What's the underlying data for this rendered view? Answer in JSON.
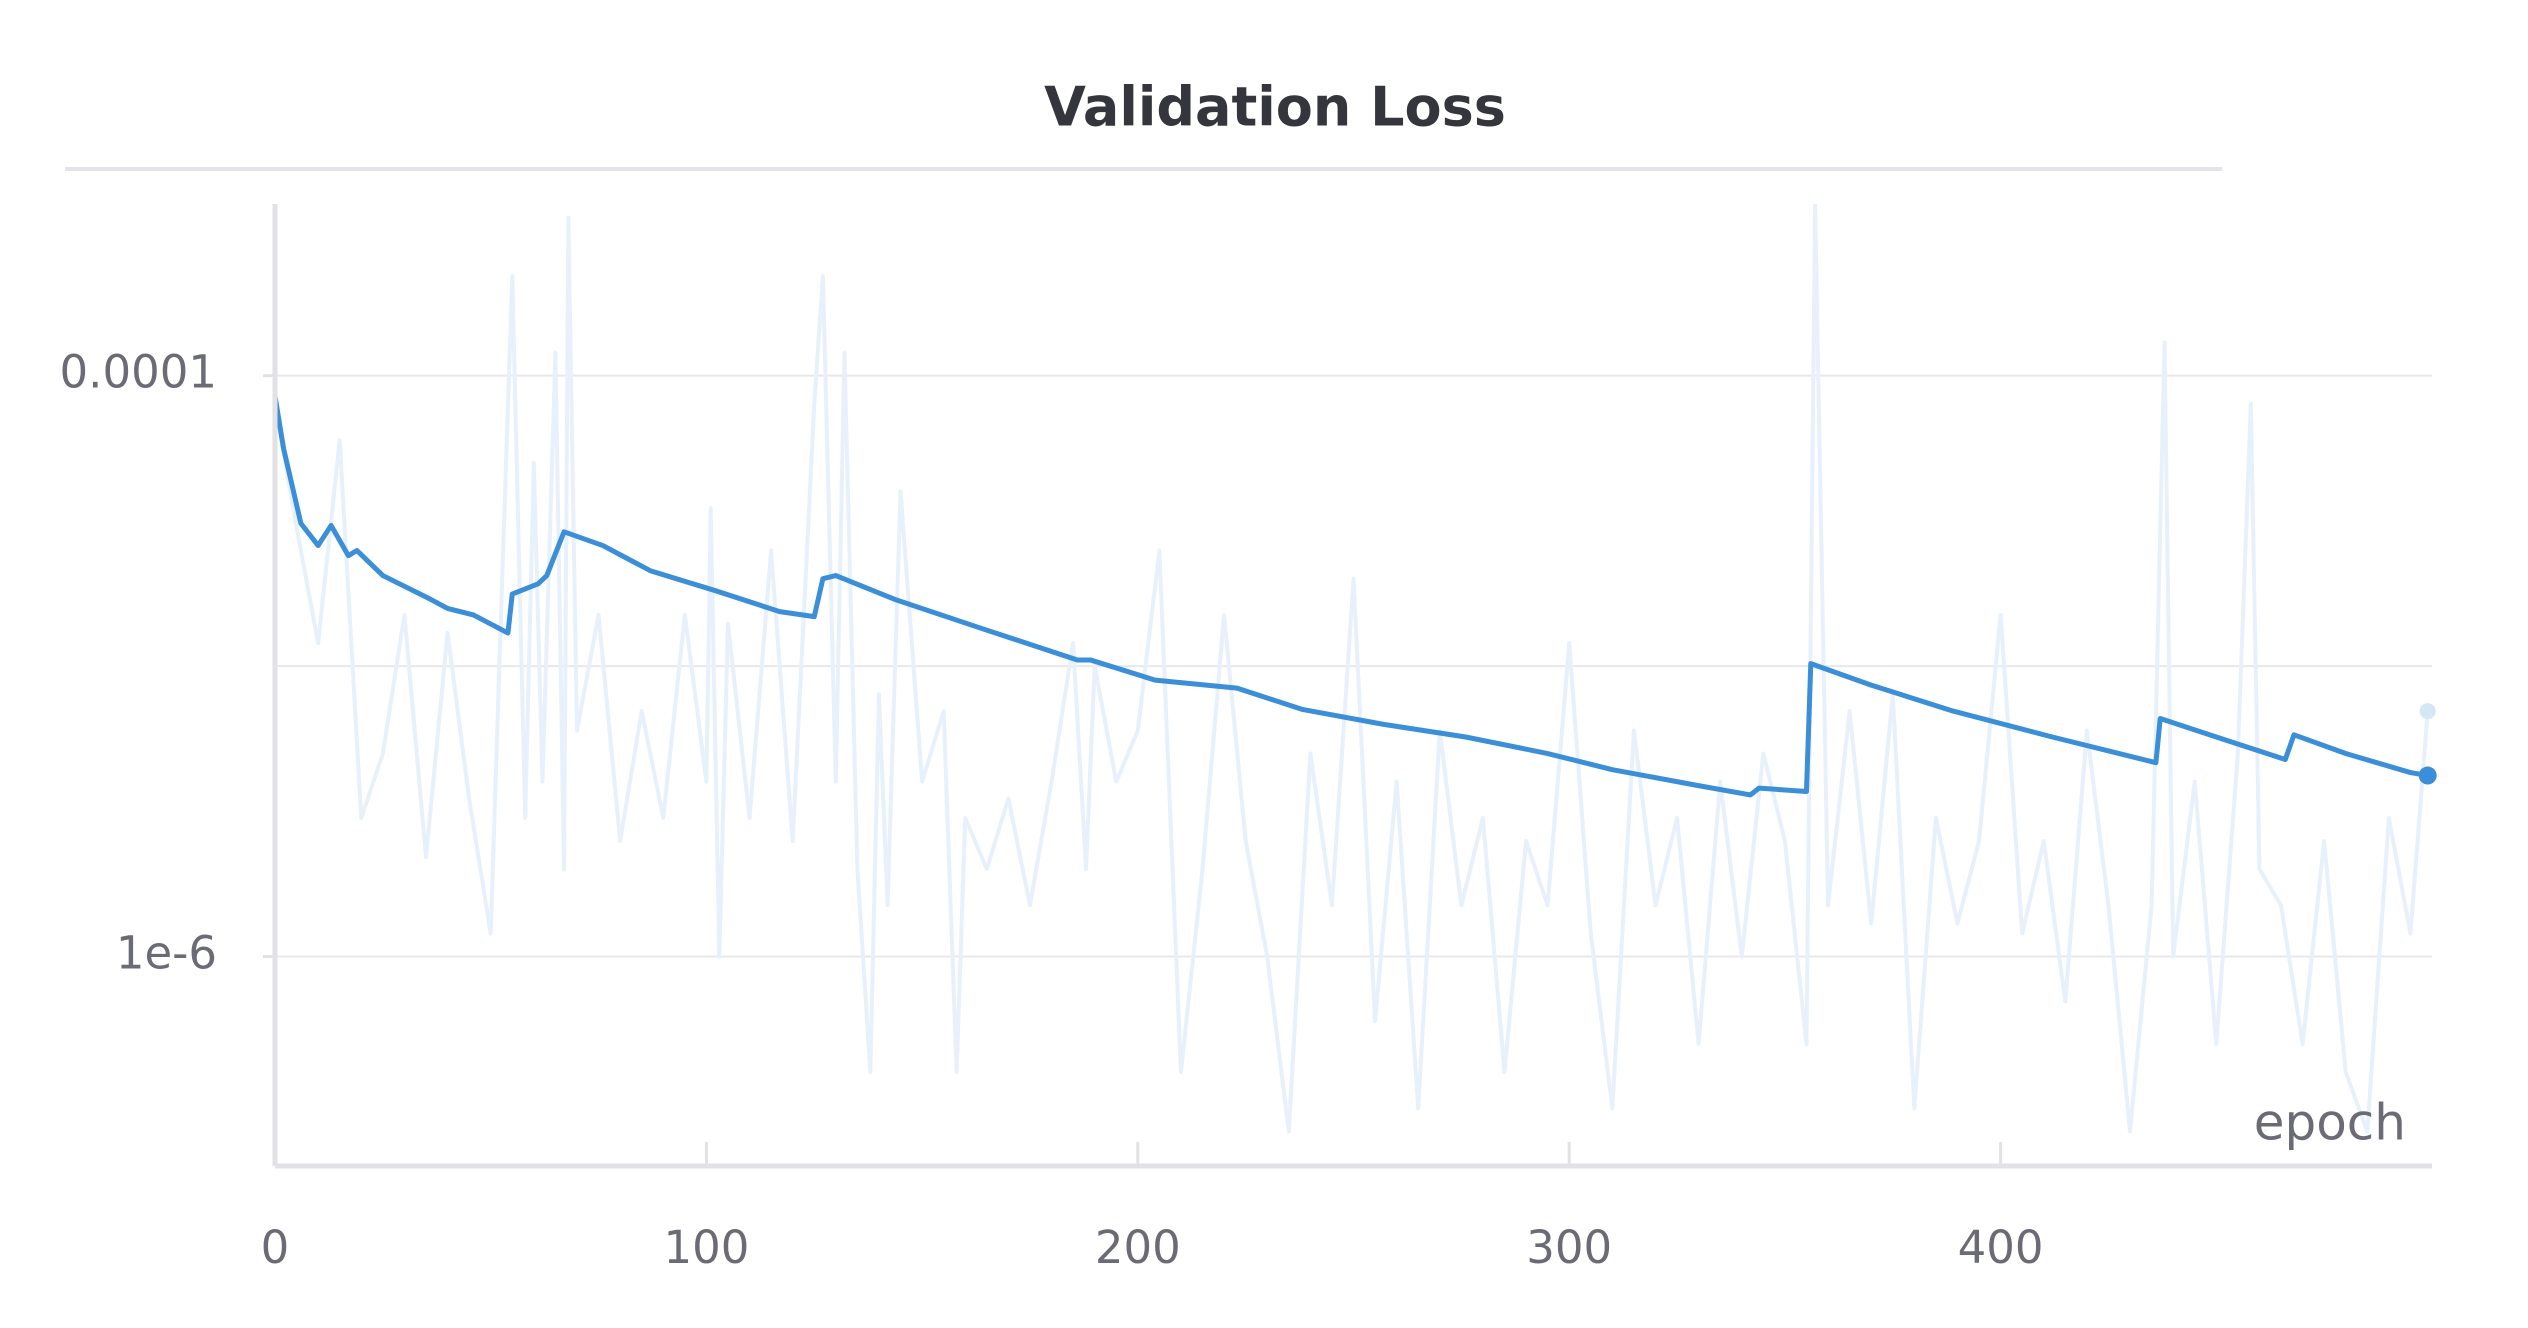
{
  "chart_data": {
    "type": "line",
    "title": "Validation Loss",
    "xlabel": "epoch",
    "xlim": [
      0,
      500
    ],
    "xticks": [
      0,
      100,
      200,
      300,
      400
    ],
    "ylim": [
      1.9e-07,
      0.00039
    ],
    "log_y": true,
    "yticks": [
      {
        "value": 0.0001,
        "label": "0.0001"
      },
      {
        "value": 1e-06,
        "label": "1e-6"
      }
    ],
    "ygrid": [
      0.0001,
      1e-05,
      1e-06
    ],
    "grid": true,
    "series": [
      {
        "color": "#e8f1fb",
        "x": [
          0,
          5,
          10,
          15,
          20,
          25,
          30,
          35,
          40,
          45,
          50,
          52,
          55,
          58,
          60,
          62,
          65,
          67,
          68,
          70,
          75,
          80,
          85,
          90,
          95,
          100,
          101,
          103,
          105,
          110,
          115,
          120,
          125,
          127,
          130,
          132,
          135,
          138,
          140,
          142,
          145,
          150,
          155,
          158,
          160,
          165,
          170,
          175,
          180,
          185,
          188,
          190,
          195,
          200,
          205,
          210,
          215,
          220,
          225,
          230,
          235,
          240,
          245,
          250,
          255,
          260,
          265,
          270,
          275,
          280,
          285,
          290,
          295,
          300,
          305,
          310,
          315,
          320,
          325,
          330,
          335,
          340,
          345,
          350,
          355,
          357,
          360,
          365,
          370,
          375,
          380,
          385,
          390,
          395,
          400,
          405,
          410,
          415,
          420,
          425,
          430,
          435,
          438,
          440,
          445,
          450,
          455,
          458,
          460,
          465,
          470,
          475,
          480,
          485,
          490,
          495,
          499
        ],
        "values": [
          8e-05,
          3e-05,
          1.2e-05,
          6e-05,
          3e-06,
          5e-06,
          1.5e-05,
          2.2e-06,
          1.3e-05,
          3.5e-06,
          1.2e-06,
          1e-05,
          0.00022,
          3e-06,
          5e-05,
          4e-06,
          0.00012,
          2e-06,
          0.00035,
          6e-06,
          1.5e-05,
          2.5e-06,
          7e-06,
          3e-06,
          1.5e-05,
          4e-06,
          3.5e-05,
          1e-06,
          1.4e-05,
          3e-06,
          2.5e-05,
          2.5e-06,
          8e-05,
          0.00022,
          4e-06,
          0.00012,
          2e-06,
          4e-07,
          8e-06,
          1.5e-06,
          4e-05,
          4e-06,
          7e-06,
          4e-07,
          3e-06,
          2e-06,
          3.5e-06,
          1.5e-06,
          4e-06,
          1.2e-05,
          2e-06,
          1e-05,
          4e-06,
          6e-06,
          2.5e-05,
          4e-07,
          2e-06,
          1.5e-05,
          2.5e-06,
          1e-06,
          2.5e-07,
          5e-06,
          1.5e-06,
          2e-05,
          6e-07,
          4e-06,
          3e-07,
          6e-06,
          1.5e-06,
          3e-06,
          4e-07,
          2.5e-06,
          1.5e-06,
          1.2e-05,
          1.2e-06,
          3e-07,
          6e-06,
          1.5e-06,
          3e-06,
          5e-07,
          4e-06,
          1e-06,
          5e-06,
          2.5e-06,
          5e-07,
          0.00039,
          1.5e-06,
          7e-06,
          1.3e-06,
          8e-06,
          3e-07,
          3e-06,
          1.3e-06,
          2.5e-06,
          1.5e-05,
          1.2e-06,
          2.5e-06,
          7e-07,
          6e-06,
          1.5e-06,
          2.5e-07,
          1.5e-06,
          0.00013,
          1e-06,
          4e-06,
          5e-07,
          5e-06,
          8e-05,
          2e-06,
          1.5e-06,
          5e-07,
          2.5e-06,
          4e-07,
          2.5e-07,
          3e-06,
          1.2e-06,
          7e-06
        ]
      },
      {
        "color": "#3a8fd8",
        "x": [
          0,
          2,
          6,
          10,
          13,
          17,
          19,
          25,
          36,
          40,
          46,
          54,
          55,
          61,
          63,
          67,
          76,
          87,
          102,
          117,
          125,
          127,
          130,
          144,
          163,
          186,
          189,
          204,
          223,
          238,
          257,
          276,
          295,
          310,
          329,
          342,
          344,
          355,
          356,
          370,
          389,
          412,
          436,
          437,
          450,
          466,
          468,
          480,
          495,
          499
        ],
        "values": [
          8.5e-05,
          5.6e-05,
          3.1e-05,
          2.6e-05,
          3.05e-05,
          2.4e-05,
          2.5e-05,
          2.05e-05,
          1.7e-05,
          1.58e-05,
          1.5e-05,
          1.3e-05,
          1.77e-05,
          1.92e-05,
          2.05e-05,
          2.9e-05,
          2.6e-05,
          2.13e-05,
          1.82e-05,
          1.54e-05,
          1.48e-05,
          2e-05,
          2.05e-05,
          1.69e-05,
          1.36e-05,
          1.05e-05,
          1.05e-05,
          8.95e-06,
          8.4e-06,
          7.1e-06,
          6.3e-06,
          5.7e-06,
          5e-06,
          4.4e-06,
          3.9e-06,
          3.6e-06,
          3.8e-06,
          3.7e-06,
          1.02e-05,
          8.6e-06,
          7e-06,
          5.7e-06,
          4.65e-06,
          6.6e-06,
          5.7e-06,
          4.77e-06,
          5.8e-06,
          5e-06,
          4.3e-06,
          4.2e-06
        ]
      }
    ]
  }
}
